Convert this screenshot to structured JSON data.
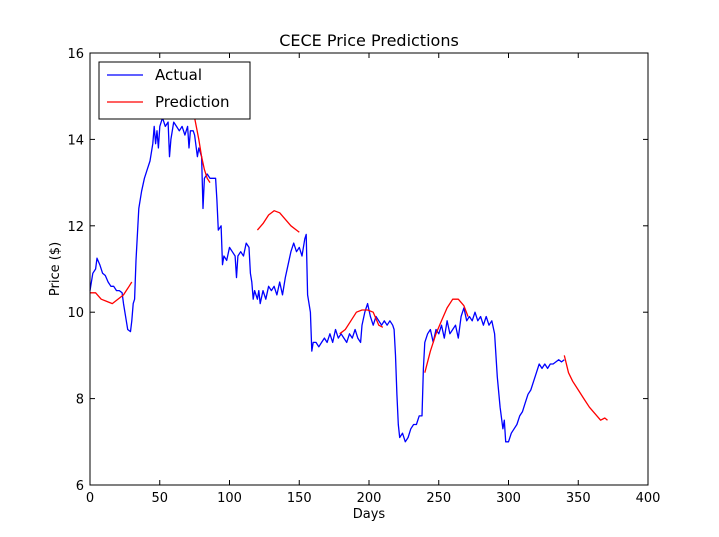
{
  "chart_data": {
    "type": "line",
    "title": "CECE Price Predictions",
    "xlabel": "Days",
    "ylabel": "Price ($)",
    "xlim": [
      0,
      400
    ],
    "ylim": [
      6,
      16
    ],
    "x_ticks": [
      0,
      50,
      100,
      150,
      200,
      250,
      300,
      350,
      400
    ],
    "y_ticks": [
      6,
      8,
      10,
      12,
      14,
      16
    ],
    "grid": false,
    "legend": "top-left",
    "series": [
      {
        "name": "Actual",
        "color": "#0000ff",
        "points": [
          [
            0,
            10.5
          ],
          [
            2,
            10.9
          ],
          [
            4,
            11.0
          ],
          [
            5,
            11.25
          ],
          [
            7,
            11.1
          ],
          [
            9,
            10.9
          ],
          [
            11,
            10.85
          ],
          [
            13,
            10.7
          ],
          [
            15,
            10.6
          ],
          [
            17,
            10.6
          ],
          [
            19,
            10.5
          ],
          [
            21,
            10.5
          ],
          [
            23,
            10.45
          ],
          [
            24,
            10.2
          ],
          [
            26,
            9.8
          ],
          [
            27,
            9.6
          ],
          [
            29,
            9.55
          ],
          [
            30,
            9.8
          ],
          [
            31,
            10.2
          ],
          [
            32,
            10.3
          ],
          [
            33,
            11.2
          ],
          [
            35,
            12.4
          ],
          [
            37,
            12.8
          ],
          [
            39,
            13.1
          ],
          [
            41,
            13.3
          ],
          [
            43,
            13.5
          ],
          [
            45,
            13.9
          ],
          [
            46,
            14.3
          ],
          [
            47,
            13.9
          ],
          [
            48,
            14.2
          ],
          [
            49,
            13.8
          ],
          [
            50,
            14.3
          ],
          [
            52,
            14.5
          ],
          [
            54,
            14.3
          ],
          [
            56,
            14.4
          ],
          [
            57,
            13.6
          ],
          [
            58,
            14.0
          ],
          [
            60,
            14.4
          ],
          [
            62,
            14.3
          ],
          [
            64,
            14.2
          ],
          [
            66,
            14.3
          ],
          [
            68,
            14.1
          ],
          [
            70,
            14.3
          ],
          [
            71,
            13.8
          ],
          [
            72,
            14.2
          ],
          [
            74,
            14.2
          ],
          [
            75,
            14.1
          ],
          [
            77,
            13.6
          ],
          [
            78,
            13.8
          ],
          [
            80,
            13.6
          ],
          [
            81,
            12.4
          ],
          [
            82,
            13.1
          ],
          [
            84,
            13.2
          ],
          [
            86,
            13.1
          ],
          [
            88,
            13.1
          ],
          [
            90,
            13.1
          ],
          [
            91,
            12.6
          ],
          [
            92,
            11.9
          ],
          [
            94,
            12.0
          ],
          [
            95,
            11.1
          ],
          [
            96,
            11.3
          ],
          [
            98,
            11.2
          ],
          [
            100,
            11.5
          ],
          [
            102,
            11.4
          ],
          [
            104,
            11.3
          ],
          [
            105,
            10.8
          ],
          [
            106,
            11.3
          ],
          [
            108,
            11.4
          ],
          [
            110,
            11.3
          ],
          [
            112,
            11.6
          ],
          [
            114,
            11.5
          ],
          [
            115,
            10.9
          ],
          [
            116,
            10.7
          ],
          [
            117,
            10.3
          ],
          [
            118,
            10.5
          ],
          [
            120,
            10.3
          ],
          [
            121,
            10.5
          ],
          [
            122,
            10.2
          ],
          [
            124,
            10.5
          ],
          [
            126,
            10.3
          ],
          [
            128,
            10.6
          ],
          [
            130,
            10.5
          ],
          [
            132,
            10.6
          ],
          [
            134,
            10.4
          ],
          [
            136,
            10.7
          ],
          [
            138,
            10.4
          ],
          [
            140,
            10.8
          ],
          [
            142,
            11.1
          ],
          [
            144,
            11.4
          ],
          [
            146,
            11.6
          ],
          [
            148,
            11.4
          ],
          [
            150,
            11.5
          ],
          [
            152,
            11.3
          ],
          [
            154,
            11.7
          ],
          [
            155,
            11.8
          ],
          [
            156,
            10.4
          ],
          [
            158,
            10.0
          ],
          [
            159,
            9.1
          ],
          [
            160,
            9.3
          ],
          [
            162,
            9.3
          ],
          [
            164,
            9.2
          ],
          [
            166,
            9.3
          ],
          [
            168,
            9.4
          ],
          [
            170,
            9.3
          ],
          [
            172,
            9.5
          ],
          [
            174,
            9.3
          ],
          [
            176,
            9.6
          ],
          [
            178,
            9.4
          ],
          [
            180,
            9.5
          ],
          [
            182,
            9.4
          ],
          [
            184,
            9.3
          ],
          [
            186,
            9.5
          ],
          [
            188,
            9.4
          ],
          [
            190,
            9.6
          ],
          [
            192,
            9.4
          ],
          [
            194,
            9.3
          ],
          [
            195,
            9.7
          ],
          [
            197,
            10.0
          ],
          [
            199,
            10.2
          ],
          [
            201,
            9.9
          ],
          [
            203,
            9.7
          ],
          [
            205,
            9.9
          ],
          [
            207,
            9.8
          ],
          [
            209,
            9.7
          ],
          [
            211,
            9.8
          ],
          [
            213,
            9.7
          ],
          [
            215,
            9.8
          ],
          [
            217,
            9.7
          ],
          [
            218,
            9.6
          ],
          [
            219,
            9.0
          ],
          [
            220,
            8.1
          ],
          [
            221,
            7.4
          ],
          [
            222,
            7.1
          ],
          [
            224,
            7.2
          ],
          [
            226,
            7.0
          ],
          [
            228,
            7.1
          ],
          [
            230,
            7.3
          ],
          [
            232,
            7.4
          ],
          [
            234,
            7.4
          ],
          [
            236,
            7.6
          ],
          [
            238,
            7.6
          ],
          [
            239,
            8.7
          ],
          [
            240,
            9.3
          ],
          [
            242,
            9.5
          ],
          [
            244,
            9.6
          ],
          [
            246,
            9.3
          ],
          [
            248,
            9.6
          ],
          [
            250,
            9.5
          ],
          [
            252,
            9.7
          ],
          [
            254,
            9.4
          ],
          [
            256,
            9.8
          ],
          [
            258,
            9.5
          ],
          [
            260,
            9.6
          ],
          [
            262,
            9.7
          ],
          [
            264,
            9.4
          ],
          [
            266,
            9.9
          ],
          [
            268,
            10.1
          ],
          [
            270,
            9.8
          ],
          [
            272,
            9.9
          ],
          [
            274,
            9.8
          ],
          [
            276,
            10.0
          ],
          [
            278,
            9.8
          ],
          [
            280,
            9.9
          ],
          [
            282,
            9.7
          ],
          [
            284,
            9.9
          ],
          [
            286,
            9.7
          ],
          [
            288,
            9.8
          ],
          [
            290,
            9.5
          ],
          [
            292,
            8.5
          ],
          [
            294,
            7.8
          ],
          [
            296,
            7.3
          ],
          [
            297,
            7.5
          ],
          [
            298,
            7.0
          ],
          [
            300,
            7.0
          ],
          [
            302,
            7.2
          ],
          [
            304,
            7.3
          ],
          [
            306,
            7.4
          ],
          [
            308,
            7.6
          ],
          [
            310,
            7.7
          ],
          [
            312,
            7.9
          ],
          [
            314,
            8.1
          ],
          [
            316,
            8.2
          ],
          [
            318,
            8.4
          ],
          [
            320,
            8.6
          ],
          [
            322,
            8.8
          ],
          [
            324,
            8.7
          ],
          [
            326,
            8.8
          ],
          [
            328,
            8.7
          ],
          [
            330,
            8.8
          ],
          [
            332,
            8.8
          ],
          [
            334,
            8.85
          ],
          [
            336,
            8.9
          ],
          [
            338,
            8.85
          ],
          [
            340,
            8.9
          ]
        ]
      },
      {
        "name": "Prediction",
        "color": "#ff0000",
        "segments": [
          [
            [
              0,
              10.45
            ],
            [
              4,
              10.45
            ],
            [
              8,
              10.3
            ],
            [
              12,
              10.25
            ],
            [
              16,
              10.2
            ],
            [
              20,
              10.3
            ],
            [
              24,
              10.4
            ],
            [
              28,
              10.6
            ],
            [
              30,
              10.7
            ]
          ],
          [
            [
              75,
              14.5
            ],
            [
              78,
              14.0
            ],
            [
              80,
              13.6
            ],
            [
              82,
              13.3
            ],
            [
              84,
              13.1
            ],
            [
              86,
              13.0
            ]
          ],
          [
            [
              120,
              11.9
            ],
            [
              124,
              12.05
            ],
            [
              128,
              12.25
            ],
            [
              132,
              12.35
            ],
            [
              136,
              12.3
            ],
            [
              140,
              12.15
            ],
            [
              144,
              12.0
            ],
            [
              148,
              11.9
            ],
            [
              150,
              11.85
            ]
          ],
          [
            [
              179,
              9.5
            ],
            [
              183,
              9.6
            ],
            [
              187,
              9.8
            ],
            [
              191,
              10.0
            ],
            [
              195,
              10.05
            ],
            [
              199,
              10.05
            ],
            [
              203,
              10.0
            ],
            [
              207,
              9.7
            ],
            [
              210,
              9.65
            ]
          ],
          [
            [
              240,
              8.6
            ],
            [
              244,
              9.1
            ],
            [
              248,
              9.5
            ],
            [
              252,
              9.8
            ],
            [
              256,
              10.1
            ],
            [
              260,
              10.3
            ],
            [
              264,
              10.3
            ],
            [
              268,
              10.15
            ],
            [
              271,
              9.9
            ]
          ],
          [
            [
              340,
              9.0
            ],
            [
              343,
              8.6
            ],
            [
              346,
              8.4
            ],
            [
              350,
              8.2
            ],
            [
              354,
              8.0
            ],
            [
              358,
              7.8
            ],
            [
              362,
              7.65
            ],
            [
              366,
              7.5
            ],
            [
              369,
              7.55
            ],
            [
              371,
              7.5
            ]
          ]
        ]
      }
    ]
  }
}
